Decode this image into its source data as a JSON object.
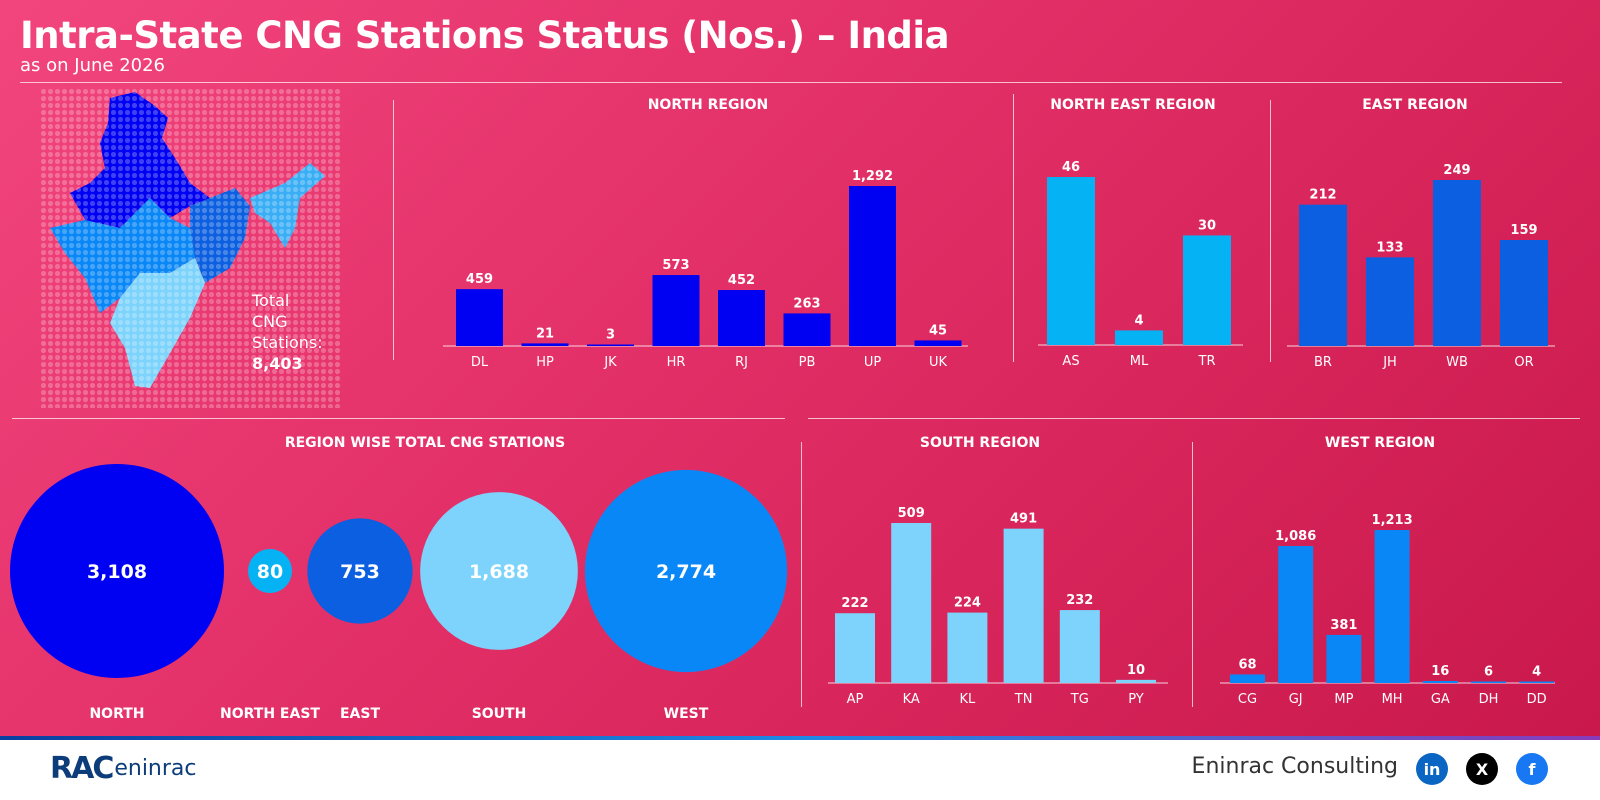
{
  "header": {
    "title": "Intra-State CNG Stations Status (Nos.) – India",
    "subtitle": "as on June 2026"
  },
  "summary": {
    "total_label": [
      "Total",
      "CNG",
      "Stations:"
    ],
    "total_value": "8,403"
  },
  "colors": {
    "north": "#0000f2",
    "north_east": "#05b3f5",
    "east": "#0b5fe0",
    "south": "#7dd3fc",
    "west": "#0a87f7",
    "background": "#e33068"
  },
  "chart_data": [
    {
      "id": "north",
      "type": "bar",
      "title": "NORTH REGION",
      "categories": [
        "DL",
        "HP",
        "JK",
        "HR",
        "RJ",
        "PB",
        "UP",
        "UK"
      ],
      "values": [
        459,
        21,
        3,
        573,
        452,
        263,
        1292,
        45
      ],
      "value_labels": [
        "459",
        "21",
        "3",
        "573",
        "452",
        "263",
        "1,292",
        "45"
      ],
      "color": "#0000f2"
    },
    {
      "id": "north_east",
      "type": "bar",
      "title": "NORTH EAST REGION",
      "categories": [
        "AS",
        "ML",
        "TR"
      ],
      "values": [
        46,
        4,
        30
      ],
      "value_labels": [
        "46",
        "4",
        "30"
      ],
      "color": "#05b3f5"
    },
    {
      "id": "east",
      "type": "bar",
      "title": "EAST REGION",
      "categories": [
        "BR",
        "JH",
        "WB",
        "OR"
      ],
      "values": [
        212,
        133,
        249,
        159
      ],
      "value_labels": [
        "212",
        "133",
        "249",
        "159"
      ],
      "color": "#0b5fe0"
    },
    {
      "id": "regions",
      "type": "bubble",
      "title": "REGION WISE TOTAL CNG STATIONS",
      "categories": [
        "NORTH",
        "NORTH EAST",
        "EAST",
        "SOUTH",
        "WEST"
      ],
      "values": [
        3108,
        80,
        753,
        1688,
        2774
      ],
      "value_labels": [
        "3,108",
        "80",
        "753",
        "1,688",
        "2,774"
      ],
      "colors": [
        "#0000f2",
        "#05b3f5",
        "#0b5fe0",
        "#7dd3fc",
        "#0a87f7"
      ]
    },
    {
      "id": "south",
      "type": "bar",
      "title": "SOUTH REGION",
      "categories": [
        "AP",
        "KA",
        "KL",
        "TN",
        "TG",
        "PY"
      ],
      "values": [
        222,
        509,
        224,
        491,
        232,
        10
      ],
      "value_labels": [
        "222",
        "509",
        "224",
        "491",
        "232",
        "10"
      ],
      "color": "#7dd3fc"
    },
    {
      "id": "west",
      "type": "bar",
      "title": "WEST REGION",
      "categories": [
        "CG",
        "GJ",
        "MP",
        "MH",
        "GA",
        "DH",
        "DD"
      ],
      "values": [
        68,
        1086,
        381,
        1213,
        16,
        6,
        4
      ],
      "value_labels": [
        "68",
        "1,086",
        "381",
        "1,213",
        "16",
        "6",
        "4"
      ],
      "color": "#0a87f7"
    }
  ],
  "footer": {
    "logo_text": "RAC",
    "logo_sub": "eninrac",
    "brand": "Eninrac Consulting",
    "social": [
      {
        "name": "linkedin-icon",
        "glyph": "in",
        "color": "#0a66c2"
      },
      {
        "name": "x-icon",
        "glyph": "X",
        "color": "#000000"
      },
      {
        "name": "facebook-icon",
        "glyph": "f",
        "color": "#1877f2"
      }
    ]
  }
}
